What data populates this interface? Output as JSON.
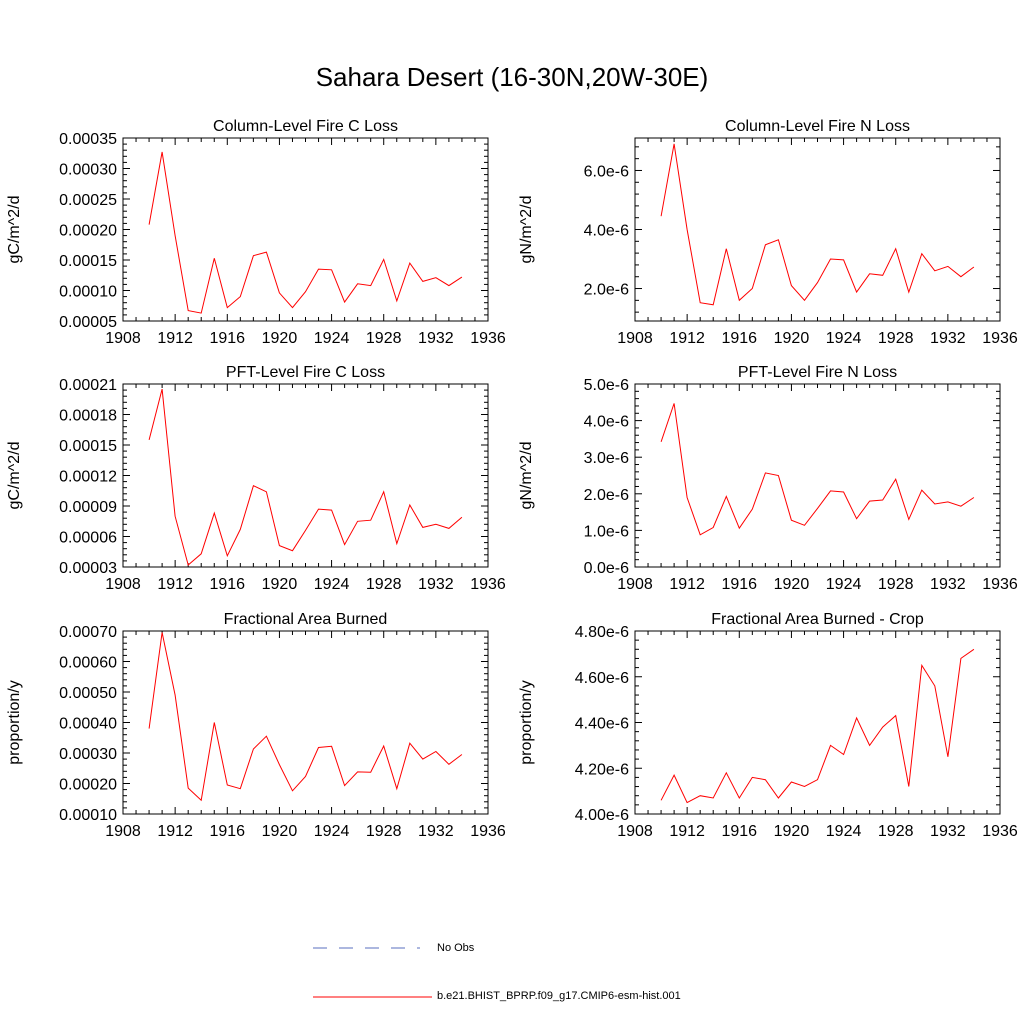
{
  "title": "Sahara Desert (16-30N,20W-30E)",
  "colors": {
    "series": "#ff0000",
    "obs": "#5a6fbf",
    "axis": "#000000"
  },
  "legend": {
    "obs_label": "No Obs",
    "model_label": "b.e21.BHIST_BPRP.f09_g17.CMIP6-esm-hist.001"
  },
  "chart_data": [
    {
      "type": "line",
      "title": "Column-Level Fire C Loss",
      "ylabel": "gC/m^2/d",
      "xlim": [
        1908,
        1936
      ],
      "ylim": [
        5e-05,
        0.00035
      ],
      "xticks": [
        "1908",
        "1912",
        "1916",
        "1920",
        "1924",
        "1928",
        "1932",
        "1936"
      ],
      "yticks": [
        5e-05,
        0.0001,
        0.00015,
        0.0002,
        0.00025,
        0.0003,
        0.00035
      ],
      "yticklabels": [
        "0.00005",
        "0.00010",
        "0.00015",
        "0.00020",
        "0.00025",
        "0.00030",
        "0.00035"
      ],
      "x": [
        1910,
        1911,
        1912,
        1913,
        1914,
        1915,
        1916,
        1917,
        1918,
        1919,
        1920,
        1921,
        1922,
        1923,
        1924,
        1925,
        1926,
        1927,
        1928,
        1929,
        1930,
        1931,
        1932,
        1933,
        1934
      ],
      "series": [
        {
          "name": "b.e21.BHIST_BPRP.f09_g17.CMIP6-esm-hist.001",
          "values": [
            0.000208,
            0.000327,
            0.00019,
            6.7e-05,
            6.3e-05,
            0.000153,
            7.2e-05,
            9e-05,
            0.000157,
            0.000163,
            9.6e-05,
            7.2e-05,
            9.8e-05,
            0.000135,
            0.000134,
            8.1e-05,
            0.000111,
            0.000108,
            0.000151,
            8.3e-05,
            0.000145,
            0.000115,
            0.000121,
            0.000108,
            0.000122
          ]
        }
      ]
    },
    {
      "type": "line",
      "title": "Column-Level Fire N Loss",
      "ylabel": "gN/m^2/d",
      "xlim": [
        1908,
        1936
      ],
      "ylim": [
        9e-07,
        7.1e-06
      ],
      "xticks": [
        "1908",
        "1912",
        "1916",
        "1920",
        "1924",
        "1928",
        "1932",
        "1936"
      ],
      "yticks": [
        2e-06,
        4e-06,
        6e-06
      ],
      "yticklabels": [
        "2.0e-6",
        "4.0e-6",
        "6.0e-6"
      ],
      "x": [
        1910,
        1911,
        1912,
        1913,
        1914,
        1915,
        1916,
        1917,
        1918,
        1919,
        1920,
        1921,
        1922,
        1923,
        1924,
        1925,
        1926,
        1927,
        1928,
        1929,
        1930,
        1931,
        1932,
        1933,
        1934
      ],
      "series": [
        {
          "name": "b.e21.BHIST_BPRP.f09_g17.CMIP6-esm-hist.001",
          "values": [
            4.45e-06,
            6.9e-06,
            4e-06,
            1.52e-06,
            1.45e-06,
            3.35e-06,
            1.6e-06,
            2e-06,
            3.48e-06,
            3.65e-06,
            2.1e-06,
            1.6e-06,
            2.2e-06,
            3e-06,
            2.97e-06,
            1.88e-06,
            2.5e-06,
            2.45e-06,
            3.35e-06,
            1.88e-06,
            3.18e-06,
            2.6e-06,
            2.75e-06,
            2.4e-06,
            2.73e-06
          ]
        }
      ]
    },
    {
      "type": "line",
      "title": "PFT-Level Fire C Loss",
      "ylabel": "gC/m^2/d",
      "xlim": [
        1908,
        1936
      ],
      "ylim": [
        3e-05,
        0.00021
      ],
      "xticks": [
        "1908",
        "1912",
        "1916",
        "1920",
        "1924",
        "1928",
        "1932",
        "1936"
      ],
      "yticks": [
        3e-05,
        6e-05,
        9e-05,
        0.00012,
        0.00015,
        0.00018,
        0.00021
      ],
      "yticklabels": [
        "0.00003",
        "0.00006",
        "0.00009",
        "0.00012",
        "0.00015",
        "0.00018",
        "0.00021"
      ],
      "x": [
        1910,
        1911,
        1912,
        1913,
        1914,
        1915,
        1916,
        1917,
        1918,
        1919,
        1920,
        1921,
        1922,
        1923,
        1924,
        1925,
        1926,
        1927,
        1928,
        1929,
        1930,
        1931,
        1932,
        1933,
        1934
      ],
      "series": [
        {
          "name": "b.e21.BHIST_BPRP.f09_g17.CMIP6-esm-hist.001",
          "values": [
            0.000155,
            0.000205,
            8e-05,
            3.2e-05,
            4.3e-05,
            8.3e-05,
            4.1e-05,
            6.7e-05,
            0.00011,
            0.000104,
            5.1e-05,
            4.6e-05,
            6.6e-05,
            8.7e-05,
            8.6e-05,
            5.2e-05,
            7.5e-05,
            7.6e-05,
            0.000104,
            5.3e-05,
            9.1e-05,
            6.9e-05,
            7.2e-05,
            6.8e-05,
            7.9e-05
          ]
        }
      ]
    },
    {
      "type": "line",
      "title": "PFT-Level Fire N Loss",
      "ylabel": "gN/m^2/d",
      "xlim": [
        1908,
        1936
      ],
      "ylim": [
        0,
        5e-06
      ],
      "xticks": [
        "1908",
        "1912",
        "1916",
        "1920",
        "1924",
        "1928",
        "1932",
        "1936"
      ],
      "yticks": [
        0,
        1e-06,
        2e-06,
        3e-06,
        4e-06,
        5e-06
      ],
      "yticklabels": [
        "0.0e-6",
        "1.0e-6",
        "2.0e-6",
        "3.0e-6",
        "4.0e-6",
        "5.0e-6"
      ],
      "x": [
        1910,
        1911,
        1912,
        1913,
        1914,
        1915,
        1916,
        1917,
        1918,
        1919,
        1920,
        1921,
        1922,
        1923,
        1924,
        1925,
        1926,
        1927,
        1928,
        1929,
        1930,
        1931,
        1932,
        1933,
        1934
      ],
      "series": [
        {
          "name": "b.e21.BHIST_BPRP.f09_g17.CMIP6-esm-hist.001",
          "values": [
            3.42e-06,
            4.47e-06,
            1.9e-06,
            8.8e-07,
            1.08e-06,
            1.93e-06,
            1.06e-06,
            1.58e-06,
            2.57e-06,
            2.5e-06,
            1.28e-06,
            1.14e-06,
            1.6e-06,
            2.08e-06,
            2.05e-06,
            1.32e-06,
            1.8e-06,
            1.83e-06,
            2.4e-06,
            1.3e-06,
            2.1e-06,
            1.72e-06,
            1.78e-06,
            1.66e-06,
            1.9e-06
          ]
        }
      ]
    },
    {
      "type": "line",
      "title": "Fractional Area Burned",
      "ylabel": "proportion/y",
      "xlim": [
        1908,
        1936
      ],
      "ylim": [
        0.0001,
        0.0007
      ],
      "xticks": [
        "1908",
        "1912",
        "1916",
        "1920",
        "1924",
        "1928",
        "1932",
        "1936"
      ],
      "yticks": [
        0.0001,
        0.0002,
        0.0003,
        0.0004,
        0.0005,
        0.0006,
        0.0007
      ],
      "yticklabels": [
        "0.00010",
        "0.00020",
        "0.00030",
        "0.00040",
        "0.00050",
        "0.00060",
        "0.00070"
      ],
      "x": [
        1910,
        1911,
        1912,
        1913,
        1914,
        1915,
        1916,
        1917,
        1918,
        1919,
        1920,
        1921,
        1922,
        1923,
        1924,
        1925,
        1926,
        1927,
        1928,
        1929,
        1930,
        1931,
        1932,
        1933,
        1934
      ],
      "series": [
        {
          "name": "b.e21.BHIST_BPRP.f09_g17.CMIP6-esm-hist.001",
          "values": [
            0.00038,
            0.000695,
            0.00049,
            0.000185,
            0.000145,
            0.0004,
            0.000195,
            0.000183,
            0.000313,
            0.000355,
            0.000262,
            0.000176,
            0.000223,
            0.000318,
            0.000322,
            0.000193,
            0.000238,
            0.000237,
            0.000323,
            0.000183,
            0.000332,
            0.00028,
            0.000305,
            0.000263,
            0.000295
          ]
        }
      ]
    },
    {
      "type": "line",
      "title": "Fractional Area Burned - Crop",
      "ylabel": "proportion/y",
      "xlim": [
        1908,
        1936
      ],
      "ylim": [
        4e-06,
        4.8e-06
      ],
      "xticks": [
        "1908",
        "1912",
        "1916",
        "1920",
        "1924",
        "1928",
        "1932",
        "1936"
      ],
      "yticks": [
        4e-06,
        4.2e-06,
        4.4e-06,
        4.6e-06,
        4.8e-06
      ],
      "yticklabels": [
        "4.00e-6",
        "4.20e-6",
        "4.40e-6",
        "4.60e-6",
        "4.80e-6"
      ],
      "x": [
        1910,
        1911,
        1912,
        1913,
        1914,
        1915,
        1916,
        1917,
        1918,
        1919,
        1920,
        1921,
        1922,
        1923,
        1924,
        1925,
        1926,
        1927,
        1928,
        1929,
        1930,
        1931,
        1932,
        1933,
        1934
      ],
      "series": [
        {
          "name": "b.e21.BHIST_BPRP.f09_g17.CMIP6-esm-hist.001",
          "values": [
            4.06e-06,
            4.17e-06,
            4.05e-06,
            4.08e-06,
            4.07e-06,
            4.18e-06,
            4.07e-06,
            4.16e-06,
            4.15e-06,
            4.07e-06,
            4.14e-06,
            4.12e-06,
            4.15e-06,
            4.3e-06,
            4.26e-06,
            4.42e-06,
            4.3e-06,
            4.38e-06,
            4.43e-06,
            4.12e-06,
            4.65e-06,
            4.56e-06,
            4.25e-06,
            4.68e-06,
            4.72e-06
          ]
        }
      ]
    }
  ]
}
